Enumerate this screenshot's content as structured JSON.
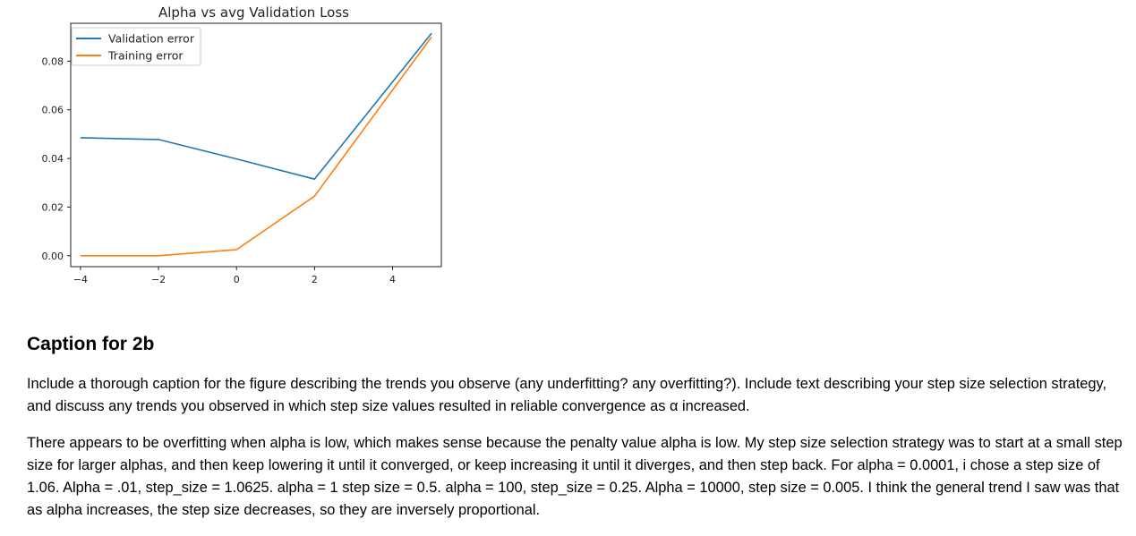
{
  "chart_data": {
    "type": "line",
    "title": "Alpha vs avg Validation Loss",
    "xlabel": "",
    "ylabel": "",
    "x": [
      -4,
      -2,
      0,
      2,
      5
    ],
    "series": [
      {
        "name": "Validation error",
        "color": "#1f77b4",
        "values": [
          0.0485,
          0.0478,
          0.0398,
          0.0315,
          0.0915
        ]
      },
      {
        "name": "Training error",
        "color": "#ff7f0e",
        "values": [
          0.0,
          0.0,
          0.0025,
          0.0245,
          0.09
        ]
      }
    ],
    "xlim": [
      -4.25,
      5.25
    ],
    "ylim": [
      -0.0045,
      0.0956
    ],
    "xticks": [
      -4,
      -2,
      0,
      2,
      4
    ],
    "xtick_labels": [
      "−4",
      "−2",
      "0",
      "2",
      "4"
    ],
    "yticks": [
      0.0,
      0.02,
      0.04,
      0.06,
      0.08
    ],
    "ytick_labels": [
      "0.00",
      "0.02",
      "0.04",
      "0.06",
      "0.08"
    ],
    "grid": false,
    "legend": "top-left"
  },
  "caption": {
    "heading": "Caption for 2b",
    "instructions": "Include a thorough caption for the figure describing the trends you observe (any underfitting? any overfitting?). Include text describing your step size selection strategy, and discuss any trends you observed in which step size values resulted in reliable convergence as α increased.",
    "answer": "There appears to be overfitting when alpha is low, which makes sense because the penalty value alpha is low. My step size selection strategy was to start at a small step size for larger alphas, and then keep lowering it until it converged, or keep increasing it until it diverges, and then step back. For alpha = 0.0001, i chose a step size of 1.06. Alpha = .01, step_size = 1.0625. alpha = 1 step size = 0.5. alpha = 100, step_size = 0.25. Alpha = 10000, step size = 0.005. I think the general trend I saw was that as alpha increases, the step size decreases, so they are inversely proportional."
  }
}
